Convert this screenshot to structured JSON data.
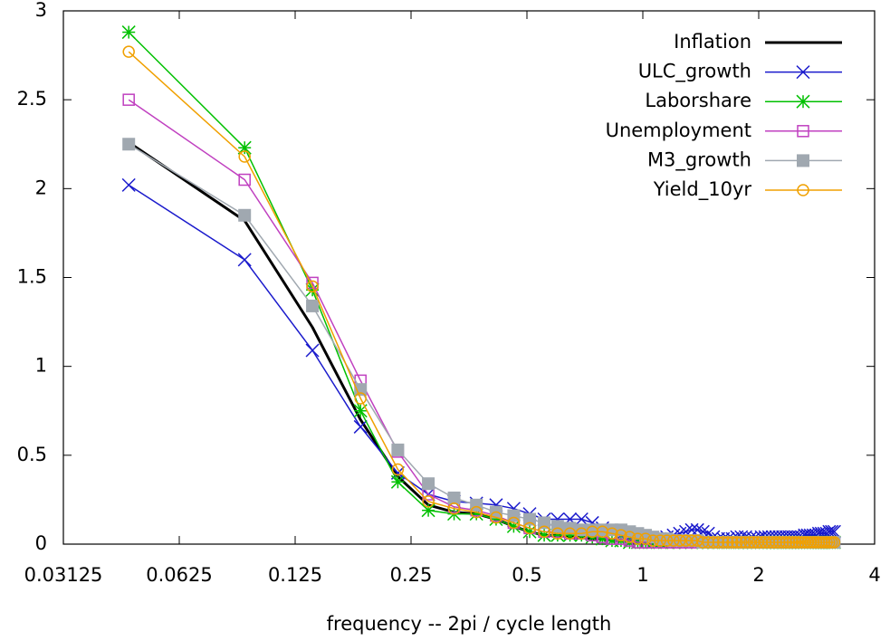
{
  "chart_data": {
    "type": "line",
    "xlabel": "frequency -- 2pi / cycle length",
    "xlog_base": 2,
    "xlim": [
      0.03125,
      4
    ],
    "xticks": [
      0.03125,
      0.0625,
      0.125,
      0.25,
      0.5,
      1,
      2,
      4
    ],
    "ylim": [
      0,
      3
    ],
    "yticks": [
      0,
      0.5,
      1,
      1.5,
      2,
      2.5,
      3
    ],
    "grid": false,
    "legend": "top-right",
    "x": [
      0.0462,
      0.0924,
      0.1386,
      0.1848,
      0.231,
      0.2772,
      0.3234,
      0.3696,
      0.4158,
      0.462,
      0.5082,
      0.5544,
      0.6006,
      0.6468,
      0.693,
      0.7392,
      0.7854,
      0.8316,
      0.8778,
      0.924,
      0.9702,
      1.0164,
      1.0626,
      1.1088,
      1.155,
      1.2012,
      1.2474,
      1.2936,
      1.3398,
      1.386,
      1.4322,
      1.4784,
      1.5246,
      1.5708,
      1.617,
      1.6632,
      1.7094,
      1.7556,
      1.8018,
      1.848,
      1.8942,
      1.9404,
      1.9866,
      2.0328,
      2.079,
      2.1252,
      2.1714,
      2.2176,
      2.2638,
      2.31,
      2.3562,
      2.4024,
      2.4486,
      2.4948,
      2.541,
      2.5872,
      2.6334,
      2.6796,
      2.7258,
      2.772,
      2.8182,
      2.8644,
      2.9106,
      2.9568,
      3.003,
      3.0492,
      3.0954,
      3.1416
    ],
    "series": [
      {
        "name": "Inflation",
        "color": "#000000",
        "marker": "none",
        "width": 3,
        "values": [
          2.26,
          1.82,
          1.22,
          0.7,
          0.38,
          0.22,
          0.18,
          0.17,
          0.14,
          0.1,
          0.07,
          0.05,
          0.05,
          0.04,
          0.04,
          0.03,
          0.03,
          0.02,
          0.02,
          0.02,
          0.01,
          0.01,
          0.01,
          0.01,
          0.01,
          0.01,
          0.01,
          0.01,
          0.01,
          0.01,
          0.01,
          0.01,
          0.01,
          0.01,
          0.01,
          0.01,
          0.01,
          0.01,
          0.01,
          0.01,
          0.01,
          0.01,
          0.01,
          0.01,
          0.01,
          0.01,
          0.01,
          0.01,
          0.01,
          0.01,
          0.01,
          0.01,
          0.01,
          0.01,
          0.01,
          0.01,
          0.01,
          0.01,
          0.01,
          0.01,
          0.01,
          0.01,
          0.01,
          0.01,
          0.01,
          0.01,
          0.01,
          0.01
        ]
      },
      {
        "name": "ULC_growth",
        "color": "#1a1acc",
        "marker": "cross",
        "width": 1.5,
        "values": [
          2.02,
          1.6,
          1.09,
          0.66,
          0.4,
          0.28,
          0.24,
          0.23,
          0.22,
          0.2,
          0.17,
          0.14,
          0.14,
          0.14,
          0.14,
          0.12,
          0.09,
          0.07,
          0.05,
          0.04,
          0.03,
          0.03,
          0.03,
          0.03,
          0.04,
          0.05,
          0.06,
          0.07,
          0.08,
          0.08,
          0.07,
          0.06,
          0.04,
          0.03,
          0.03,
          0.03,
          0.03,
          0.04,
          0.04,
          0.04,
          0.03,
          0.03,
          0.03,
          0.04,
          0.04,
          0.04,
          0.04,
          0.04,
          0.04,
          0.04,
          0.04,
          0.04,
          0.04,
          0.04,
          0.04,
          0.04,
          0.05,
          0.05,
          0.05,
          0.05,
          0.05,
          0.06,
          0.06,
          0.06,
          0.06,
          0.07,
          0.07,
          0.07
        ]
      },
      {
        "name": "Laborshare",
        "color": "#00c000",
        "marker": "asterisk",
        "width": 1.5,
        "values": [
          2.88,
          2.23,
          1.43,
          0.75,
          0.35,
          0.19,
          0.17,
          0.17,
          0.14,
          0.1,
          0.07,
          0.05,
          0.05,
          0.05,
          0.05,
          0.04,
          0.03,
          0.02,
          0.02,
          0.01,
          0.01,
          0.01,
          0.01,
          0.01,
          0.01,
          0.01,
          0.01,
          0.01,
          0.01,
          0.01,
          0.01,
          0.01,
          0.01,
          0.01,
          0.01,
          0.01,
          0.01,
          0.01,
          0.01,
          0.01,
          0.01,
          0.01,
          0.01,
          0.01,
          0.01,
          0.01,
          0.01,
          0.01,
          0.01,
          0.01,
          0.01,
          0.01,
          0.01,
          0.01,
          0.01,
          0.01,
          0.01,
          0.01,
          0.01,
          0.01,
          0.01,
          0.01,
          0.01,
          0.01,
          0.01,
          0.01,
          0.01,
          0.01
        ]
      },
      {
        "name": "Unemployment",
        "color": "#c040c0",
        "marker": "square-open",
        "width": 1.5,
        "values": [
          2.5,
          2.05,
          1.47,
          0.92,
          0.52,
          0.28,
          0.21,
          0.19,
          0.16,
          0.12,
          0.09,
          0.07,
          0.07,
          0.06,
          0.06,
          0.05,
          0.04,
          0.03,
          0.03,
          0.02,
          0.01,
          0.01,
          0.01,
          0.01,
          0.01,
          0.01,
          0.01,
          0.01,
          0.01,
          0.01,
          0.01,
          0.01,
          0.01,
          0.01,
          0.01,
          0.01,
          0.01,
          0.01,
          0.01,
          0.01,
          0.01,
          0.01,
          0.01,
          0.01,
          0.01,
          0.01,
          0.01,
          0.01,
          0.01,
          0.01,
          0.01,
          0.01,
          0.01,
          0.01,
          0.01,
          0.01,
          0.01,
          0.01,
          0.01,
          0.01,
          0.01,
          0.01,
          0.01,
          0.01,
          0.01,
          0.01,
          0.01,
          0.01
        ]
      },
      {
        "name": "M3_growth",
        "color": "#a0a8b0",
        "marker": "square-filled",
        "width": 1.5,
        "values": [
          2.25,
          1.85,
          1.34,
          0.87,
          0.53,
          0.34,
          0.26,
          0.22,
          0.18,
          0.16,
          0.14,
          0.12,
          0.1,
          0.09,
          0.08,
          0.08,
          0.08,
          0.08,
          0.08,
          0.07,
          0.06,
          0.05,
          0.04,
          0.03,
          0.03,
          0.02,
          0.02,
          0.02,
          0.02,
          0.02,
          0.01,
          0.01,
          0.01,
          0.01,
          0.01,
          0.01,
          0.01,
          0.01,
          0.01,
          0.01,
          0.01,
          0.01,
          0.01,
          0.01,
          0.01,
          0.01,
          0.01,
          0.01,
          0.01,
          0.01,
          0.01,
          0.01,
          0.01,
          0.01,
          0.01,
          0.01,
          0.01,
          0.01,
          0.01,
          0.01,
          0.01,
          0.01,
          0.01,
          0.01,
          0.01,
          0.01,
          0.01,
          0.01
        ]
      },
      {
        "name": "Yield_10yr",
        "color": "#f0a000",
        "marker": "circle-open",
        "width": 1.5,
        "values": [
          2.77,
          2.18,
          1.45,
          0.82,
          0.42,
          0.24,
          0.2,
          0.18,
          0.15,
          0.12,
          0.09,
          0.07,
          0.06,
          0.06,
          0.06,
          0.07,
          0.07,
          0.06,
          0.05,
          0.04,
          0.03,
          0.03,
          0.02,
          0.02,
          0.02,
          0.02,
          0.02,
          0.02,
          0.02,
          0.02,
          0.01,
          0.01,
          0.01,
          0.01,
          0.01,
          0.01,
          0.01,
          0.01,
          0.01,
          0.01,
          0.01,
          0.01,
          0.01,
          0.01,
          0.01,
          0.01,
          0.01,
          0.01,
          0.01,
          0.01,
          0.01,
          0.01,
          0.01,
          0.01,
          0.01,
          0.01,
          0.01,
          0.01,
          0.01,
          0.01,
          0.01,
          0.01,
          0.01,
          0.01,
          0.01,
          0.01,
          0.01,
          0.01
        ]
      }
    ]
  }
}
